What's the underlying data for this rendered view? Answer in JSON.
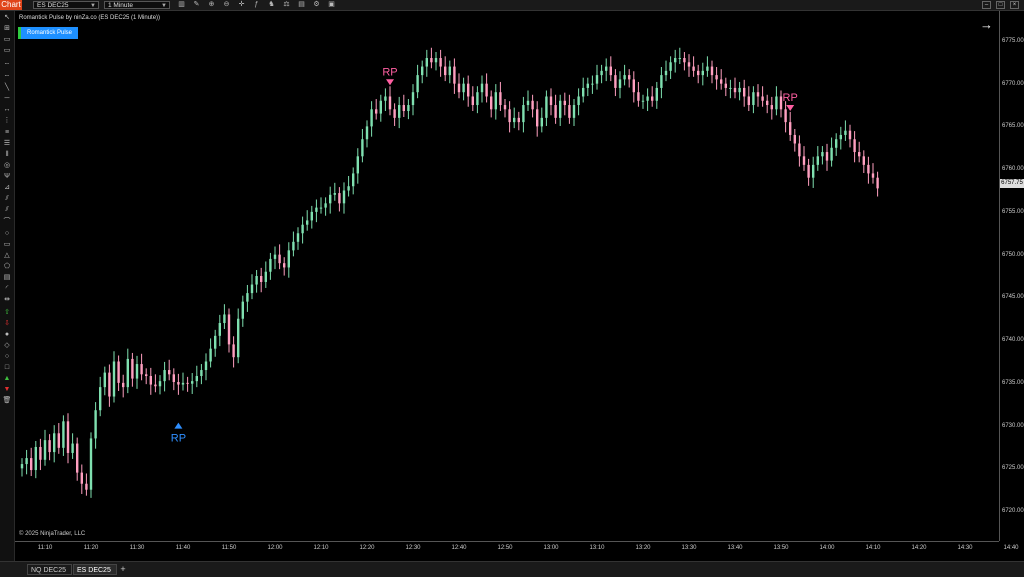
{
  "app": {
    "badge": "Chart",
    "instrument": "ES DEC25",
    "interval": "1 Minute"
  },
  "indicator": {
    "title": "Romantick Pulse by ninZa.co (ES DEC25 (1 Minute))",
    "button_label": "Romantick Pulse",
    "copyright": "© 2025 NinjaTrader, LLC"
  },
  "tabs": [
    {
      "label": "NQ DEC25"
    },
    {
      "label": "ES DEC25"
    }
  ],
  "last_price": "6757.75",
  "signals": [
    {
      "label": "RP",
      "direction": "up",
      "time": "11:39",
      "color": "#2f8fff"
    },
    {
      "label": "RP",
      "direction": "down",
      "time": "12:25",
      "color": "#ff5fa2"
    },
    {
      "label": "RP",
      "direction": "down",
      "time": "13:52",
      "color": "#ff5fa2"
    }
  ],
  "colors": {
    "up": "#7fe0b0",
    "down": "#ff9fc0",
    "accent": "#e0451b",
    "pulse": "#1e90ff"
  },
  "chart_data": {
    "type": "line",
    "x_start": "11:05",
    "x_interval_minutes": 1,
    "xticks": [
      "11:10",
      "11:20",
      "11:30",
      "11:40",
      "11:50",
      "12:00",
      "12:10",
      "12:20",
      "12:30",
      "12:40",
      "12:50",
      "13:00",
      "13:10",
      "13:20",
      "13:30",
      "13:40",
      "13:50",
      "14:00",
      "14:10",
      "14:20",
      "14:30",
      "14:40"
    ],
    "yticks": [
      "6775.00",
      "6770.00",
      "6765.00",
      "6760.00",
      "6755.00",
      "6750.00",
      "6745.00",
      "6740.00",
      "6735.00",
      "6730.00",
      "6725.00",
      "6720.00"
    ],
    "ylim": [
      6716.5,
      6778.5
    ],
    "series": [
      {
        "values": [
          6725.5,
          6726.2,
          6724.8,
          6727.5,
          6726.0,
          6728.3,
          6726.9,
          6729.1,
          6727.4,
          6730.5,
          6726.8,
          6727.9,
          6724.5,
          6723.2,
          6722.5,
          6728.5,
          6731.8,
          6734.5,
          6736.2,
          6733.4,
          6737.5,
          6735.0,
          6734.5,
          6737.8,
          6735.5,
          6737.2,
          6736.0,
          6735.8,
          6734.8,
          6734.6,
          6735.2,
          6736.5,
          6736.0,
          6735.1,
          6734.8,
          6735.0,
          6734.9,
          6735.2,
          6735.8,
          6736.5,
          6737.5,
          6739.0,
          6740.5,
          6742.0,
          6743.0,
          6739.5,
          6738.0,
          6742.5,
          6744.5,
          6745.5,
          6746.5,
          6747.5,
          6746.8,
          6748.0,
          6749.5,
          6750.0,
          6749.0,
          6748.5,
          6750.5,
          6751.5,
          6752.5,
          6753.5,
          6754.0,
          6755.0,
          6755.5,
          6755.5,
          6756.0,
          6757.0,
          6757.2,
          6756.0,
          6757.5,
          6758.0,
          6759.5,
          6761.5,
          6763.5,
          6765.0,
          6767.0,
          6766.5,
          6768.0,
          6768.5,
          6767.0,
          6766.0,
          6767.5,
          6766.8,
          6767.5,
          6769.0,
          6771.0,
          6772.0,
          6773.0,
          6772.5,
          6773.0,
          6772.0,
          6771.0,
          6772.0,
          6770.0,
          6769.0,
          6770.0,
          6768.5,
          6767.5,
          6769.0,
          6770.0,
          6768.5,
          6767.0,
          6769.0,
          6767.5,
          6767.0,
          6765.5,
          6766.0,
          6765.5,
          6767.5,
          6768.0,
          6767.0,
          6765.0,
          6766.0,
          6768.5,
          6767.5,
          6766.0,
          6768.0,
          6767.5,
          6766.0,
          6767.5,
          6768.5,
          6769.5,
          6770.0,
          6770.0,
          6771.0,
          6771.5,
          6772.0,
          6771.0,
          6769.5,
          6770.5,
          6771.0,
          6770.5,
          6769.0,
          6768.0,
          6768.0,
          6768.5,
          6768.0,
          6769.5,
          6771.0,
          6771.5,
          6772.5,
          6773.0,
          6773.0,
          6772.5,
          6772.0,
          6771.5,
          6771.0,
          6771.5,
          6772.0,
          6771.0,
          6770.5,
          6770.0,
          6769.5,
          6769.5,
          6769.0,
          6769.5,
          6768.5,
          6767.5,
          6769.0,
          6768.5,
          6768.0,
          6767.5,
          6767.0,
          6768.5,
          6767.0,
          6765.5,
          6764.0,
          6763.0,
          6761.5,
          6760.5,
          6759.0,
          6760.5,
          6761.5,
          6762.0,
          6761.0,
          6762.5,
          6763.5,
          6764.0,
          6764.5,
          6763.5,
          6762.0,
          6761.5,
          6760.5,
          6759.5,
          6759.0,
          6757.75
        ]
      }
    ]
  }
}
